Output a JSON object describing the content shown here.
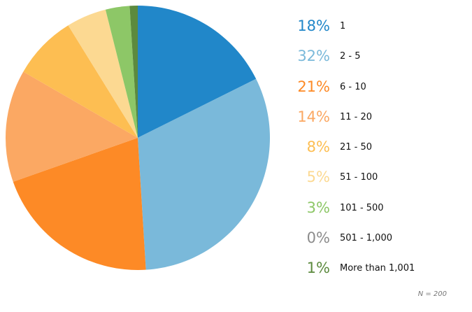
{
  "chart_data": {
    "type": "pie",
    "categories": [
      "1",
      "2 - 5",
      "6 - 10",
      "11 - 20",
      "21 - 50",
      "51 - 100",
      "101 - 500",
      "501 - 1,000",
      "More than 1,001"
    ],
    "values": [
      18,
      32,
      21,
      14,
      8,
      5,
      3,
      0,
      1
    ],
    "percent_labels": [
      "18%",
      "32%",
      "21%",
      "14%",
      "8%",
      "5%",
      "3%",
      "0%",
      "1%"
    ],
    "colors": [
      "#2187c9",
      "#7ab9da",
      "#fd8a26",
      "#fba863",
      "#fdbe52",
      "#fcd992",
      "#8dc767",
      "#8c8c8c",
      "#5c8a3e"
    ],
    "label_colors": [
      "#2187c9",
      "#7ab9da",
      "#fd8a26",
      "#fba863",
      "#fdbe52",
      "#fcd992",
      "#8dc767",
      "#8c8c8c",
      "#5c8a3e"
    ],
    "footnote": "N = 200",
    "legend_position": "right"
  }
}
